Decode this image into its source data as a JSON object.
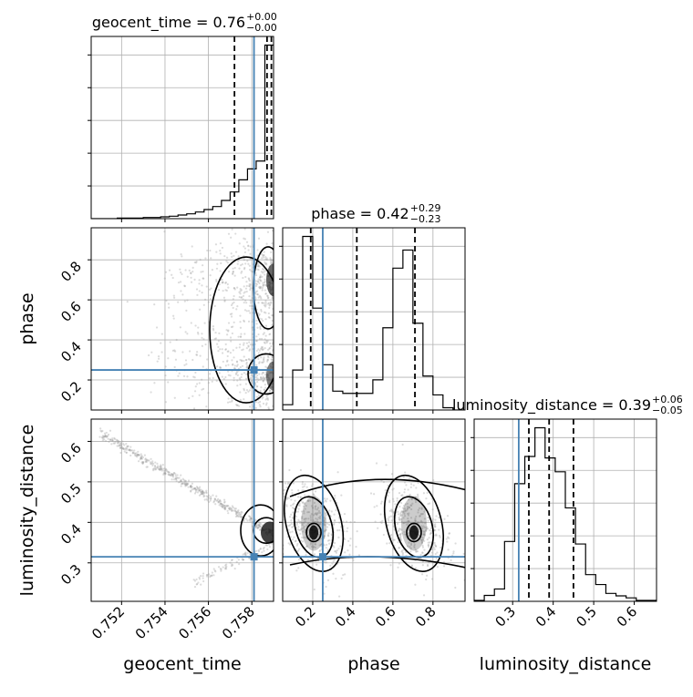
{
  "chart_data": {
    "type": "corner",
    "parameters": [
      "geocent_time",
      "phase",
      "luminosity_distance"
    ],
    "axis_labels": {
      "geocent_time": "geocent_time",
      "phase": "phase",
      "luminosity_distance": "luminosity_distance"
    },
    "titles": [
      {
        "param": "geocent_time",
        "text": "geocent_time = 0.76",
        "sup": "+0.00",
        "sub": "−0.00"
      },
      {
        "param": "phase",
        "text": "phase = 0.42",
        "sup": "+0.29",
        "sub": "−0.23"
      },
      {
        "param": "luminosity_distance",
        "text": "luminosity_distance = 0.39",
        "sup": "+0.06",
        "sub": "−0.05"
      }
    ],
    "ranges": {
      "geocent_time": [
        0.7506,
        0.759
      ],
      "phase": [
        0.05,
        0.96
      ],
      "luminosity_distance": [
        0.205,
        0.655
      ]
    },
    "ticks": {
      "geocent_time": [
        0.752,
        0.754,
        0.756,
        0.758
      ],
      "phase": [
        0.2,
        0.4,
        0.6,
        0.8
      ],
      "luminosity_distance": [
        0.3,
        0.4,
        0.5,
        0.6
      ]
    },
    "tick_labels": {
      "geocent_time": [
        "0.752",
        "0.754",
        "0.756",
        "0.758"
      ],
      "phase": [
        "0.2",
        "0.4",
        "0.6",
        "0.8"
      ],
      "luminosity_distance": [
        "0.3",
        "0.4",
        "0.5",
        "0.6"
      ]
    },
    "truths": {
      "geocent_time": 0.7581,
      "phase": 0.25,
      "luminosity_distance": 0.315
    },
    "quantiles": {
      "geocent_time": [
        0.7572,
        0.7587,
        0.7589
      ],
      "phase": [
        0.19,
        0.42,
        0.71
      ],
      "luminosity_distance": [
        0.34,
        0.39,
        0.45
      ]
    },
    "histograms": {
      "geocent_time": {
        "edges": [
          0.7506,
          0.751,
          0.7514,
          0.7518,
          0.7522,
          0.7526,
          0.753,
          0.7534,
          0.7538,
          0.7542,
          0.7546,
          0.755,
          0.7554,
          0.7558,
          0.7562,
          0.7566,
          0.757,
          0.7574,
          0.7578,
          0.7582,
          0.7586,
          0.759
        ],
        "counts": [
          0,
          0,
          0,
          1,
          1,
          1,
          2,
          2,
          3,
          4,
          6,
          8,
          11,
          15,
          20,
          30,
          44,
          64,
          82,
          95,
          286
        ]
      },
      "phase": {
        "edges": [
          0.05,
          0.1,
          0.15,
          0.2,
          0.25,
          0.3,
          0.35,
          0.4,
          0.45,
          0.5,
          0.55,
          0.6,
          0.65,
          0.7,
          0.75,
          0.8,
          0.85,
          0.9,
          0.95
        ],
        "counts": [
          7,
          53,
          230,
          135,
          60,
          25,
          22,
          22,
          22,
          40,
          109,
          188,
          212,
          115,
          45,
          20,
          3,
          0
        ]
      },
      "luminosity_distance": {
        "edges": [
          0.205,
          0.23,
          0.255,
          0.28,
          0.305,
          0.33,
          0.355,
          0.38,
          0.405,
          0.43,
          0.455,
          0.48,
          0.505,
          0.53,
          0.555,
          0.58,
          0.605,
          0.63,
          0.655
        ],
        "counts": [
          2,
          12,
          25,
          121,
          238,
          293,
          351,
          290,
          262,
          189,
          116,
          54,
          34,
          16,
          11,
          7,
          2,
          2
        ]
      }
    },
    "grid": true
  }
}
